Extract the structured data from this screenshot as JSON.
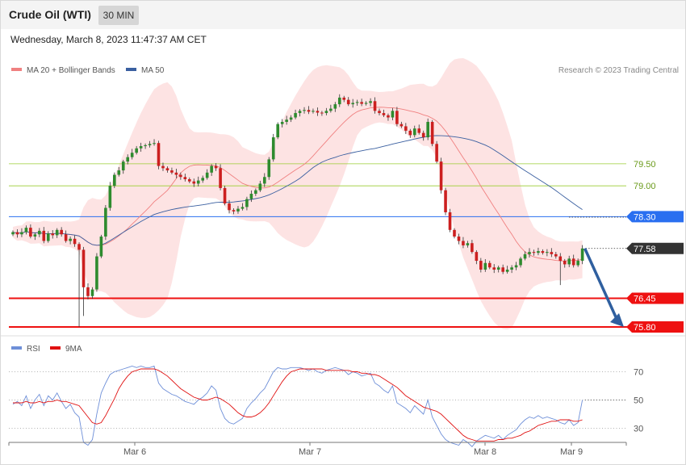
{
  "header": {
    "instrument": "Crude Oil (WTI)",
    "timeframe": "30 MIN",
    "datetime": "Wednesday, March 8, 2023 11:47:37 AM CET"
  },
  "legend": {
    "ma20": "MA 20 + Bollinger Bands",
    "ma50": "MA 50",
    "copyright": "Research © 2023 Trading Central",
    "rsi": "RSI",
    "ma9": "9MA"
  },
  "colors": {
    "up": "#2e8b2e",
    "down": "#cc1f1f",
    "ma20": "#f08080",
    "ma50": "#3a5fa0",
    "band": "#fde2e2",
    "support": "#ee1111",
    "pivot": "#2a6ff0",
    "resistance": "#9acd32",
    "arrow": "#2f5f9f",
    "rsi": "#6e8fd8",
    "rsi_ma": "#e01010"
  },
  "chart_data": {
    "type": "candlestick",
    "price_levels": [
      {
        "value": 79.5,
        "label": "79.50",
        "kind": "resistance"
      },
      {
        "value": 79.0,
        "label": "79.00",
        "kind": "resistance"
      },
      {
        "value": 78.3,
        "label": "78.30",
        "kind": "pivot"
      },
      {
        "value": 77.58,
        "label": "77.58",
        "kind": "last"
      },
      {
        "value": 76.45,
        "label": "76.45",
        "kind": "support"
      },
      {
        "value": 75.8,
        "label": "75.80",
        "kind": "support"
      }
    ],
    "price_range": [
      75.8,
      81.2
    ],
    "x_ticks": [
      "Mar 6",
      "Mar 7",
      "Mar 8",
      "Mar 9"
    ],
    "rsi_ticks": [
      "70",
      "50",
      "30"
    ],
    "rsi_range": [
      20,
      80
    ],
    "close": [
      77.95,
      77.9,
      77.95,
      78.05,
      77.85,
      77.9,
      77.98,
      77.75,
      77.92,
      77.88,
      78.0,
      77.9,
      77.75,
      77.8,
      77.68,
      77.55,
      76.7,
      76.5,
      76.65,
      77.4,
      77.85,
      78.5,
      79.0,
      79.25,
      79.35,
      79.55,
      79.65,
      79.75,
      79.85,
      79.9,
      79.92,
      79.95,
      79.97,
      79.45,
      79.4,
      79.35,
      79.3,
      79.25,
      79.2,
      79.15,
      79.1,
      79.05,
      79.12,
      79.18,
      79.3,
      79.45,
      79.4,
      78.95,
      78.6,
      78.45,
      78.42,
      78.48,
      78.52,
      78.7,
      78.82,
      78.9,
      79.05,
      79.2,
      79.6,
      80.1,
      80.4,
      80.45,
      80.5,
      80.55,
      80.65,
      80.7,
      80.72,
      80.68,
      80.7,
      80.66,
      80.65,
      80.7,
      80.75,
      80.85,
      81.0,
      80.95,
      80.85,
      80.88,
      80.9,
      80.86,
      80.88,
      80.92,
      80.7,
      80.65,
      80.6,
      80.55,
      80.7,
      80.4,
      80.35,
      80.25,
      80.15,
      80.3,
      80.2,
      80.1,
      80.45,
      79.95,
      79.55,
      78.9,
      78.4,
      78.0,
      77.85,
      77.75,
      77.65,
      77.7,
      77.5,
      77.3,
      77.1,
      77.25,
      77.15,
      77.1,
      77.15,
      77.05,
      77.1,
      77.15,
      77.2,
      77.35,
      77.45,
      77.5,
      77.48,
      77.52,
      77.48,
      77.5,
      77.45,
      77.4,
      77.3,
      77.22,
      77.35,
      77.2,
      77.3,
      77.58
    ],
    "rsi": [
      47,
      49,
      46,
      53,
      44,
      50,
      54,
      46,
      53,
      50,
      55,
      49,
      44,
      47,
      41,
      38,
      20,
      18,
      22,
      40,
      55,
      62,
      68,
      70,
      71,
      72,
      73,
      74,
      73,
      74,
      73,
      73,
      74,
      62,
      58,
      56,
      54,
      53,
      51,
      49,
      48,
      47,
      50,
      52,
      55,
      60,
      57,
      44,
      37,
      34,
      33,
      35,
      37,
      44,
      48,
      51,
      55,
      58,
      64,
      70,
      73,
      72,
      72,
      73,
      73,
      73,
      72,
      71,
      72,
      70,
      69,
      71,
      72,
      73,
      72,
      71,
      68,
      70,
      69,
      67,
      68,
      69,
      62,
      60,
      57,
      55,
      60,
      48,
      46,
      44,
      41,
      46,
      43,
      40,
      50,
      38,
      32,
      26,
      22,
      20,
      19,
      18,
      22,
      20,
      17,
      21,
      23,
      25,
      24,
      23,
      25,
      22,
      25,
      27,
      29,
      33,
      36,
      38,
      37,
      39,
      37,
      38,
      37,
      36,
      34,
      33,
      36,
      32,
      34,
      50
    ],
    "rsi_ma": [
      48,
      48,
      48,
      49,
      48,
      48,
      49,
      48,
      49,
      49,
      50,
      49,
      49,
      48,
      47,
      46,
      42,
      38,
      34,
      33,
      34,
      39,
      45,
      51,
      58,
      63,
      67,
      70,
      71,
      72,
      72,
      72,
      72,
      71,
      69,
      67,
      64,
      61,
      58,
      56,
      54,
      52,
      51,
      50,
      50,
      51,
      52,
      51,
      49,
      47,
      44,
      41,
      39,
      38,
      38,
      39,
      41,
      44,
      48,
      53,
      58,
      63,
      67,
      70,
      71,
      72,
      72,
      72,
      72,
      72,
      72,
      71,
      71,
      71,
      71,
      71,
      71,
      70,
      70,
      69,
      69,
      68,
      68,
      67,
      65,
      63,
      61,
      59,
      56,
      53,
      51,
      49,
      47,
      45,
      44,
      43,
      42,
      40,
      37,
      34,
      31,
      28,
      25,
      23,
      22,
      21,
      21,
      21,
      21,
      21,
      22,
      22,
      23,
      23,
      24,
      25,
      27,
      28,
      30,
      32,
      33,
      34,
      35,
      35,
      36,
      36,
      36,
      35,
      35,
      36
    ],
    "projection": {
      "from": 77.58,
      "to": 75.8
    }
  }
}
